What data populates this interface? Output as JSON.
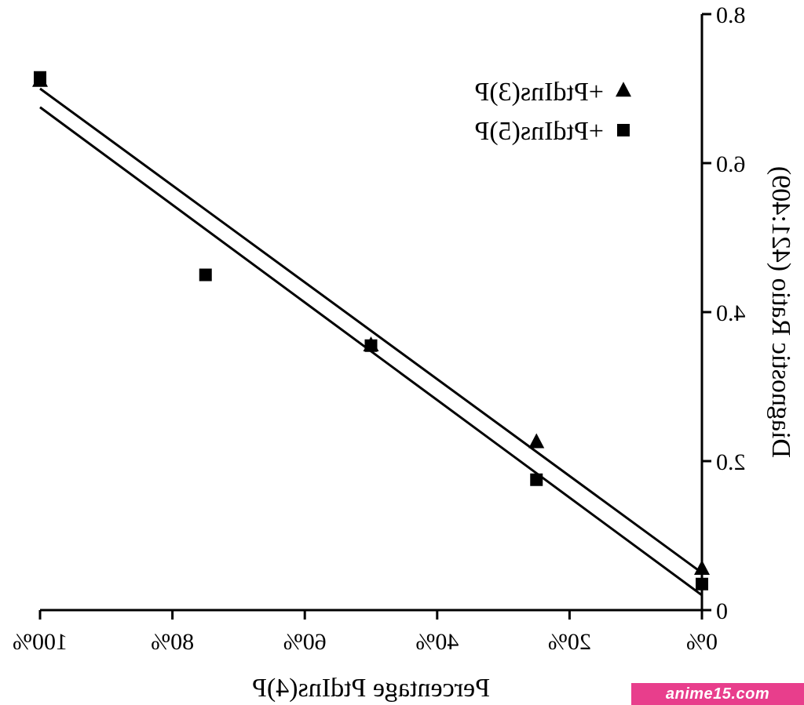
{
  "chart_data": {
    "type": "scatter",
    "mirrored": true,
    "xlabel": "Percentage PtdIns(4)P",
    "ylabel": "Diagnostic Ratio (421:409)",
    "xlim": [
      0,
      100
    ],
    "ylim": [
      0,
      8
    ],
    "x_ticks": [
      {
        "value": 0,
        "label": "0%"
      },
      {
        "value": 20,
        "label": "20%"
      },
      {
        "value": 40,
        "label": "40%"
      },
      {
        "value": 60,
        "label": "60%"
      },
      {
        "value": 80,
        "label": "80%"
      },
      {
        "value": 100,
        "label": "100%"
      }
    ],
    "y_ticks": [
      {
        "value": 0,
        "label": "0"
      },
      {
        "value": 2,
        "label": "2.0"
      },
      {
        "value": 4,
        "label": "4.0"
      },
      {
        "value": 6,
        "label": "6.0"
      },
      {
        "value": 8,
        "label": "8.0"
      }
    ],
    "legend_position": "top-right",
    "series": [
      {
        "name": "+PtdIns(3)P",
        "marker": "triangle",
        "color": "#000000",
        "points": [
          {
            "x": 0,
            "y": 0.55
          },
          {
            "x": 25,
            "y": 2.25
          },
          {
            "x": 50,
            "y": 3.55
          },
          {
            "x": 100,
            "y": 7.1
          }
        ],
        "fit": {
          "x0": 0,
          "y0": 0.5,
          "x1": 100,
          "y1": 7.0
        }
      },
      {
        "name": "+PtdIns(5)P",
        "marker": "square",
        "color": "#000000",
        "points": [
          {
            "x": 0,
            "y": 0.35
          },
          {
            "x": 25,
            "y": 1.75
          },
          {
            "x": 50,
            "y": 3.55
          },
          {
            "x": 75,
            "y": 4.5
          },
          {
            "x": 100,
            "y": 7.15
          }
        ],
        "fit": {
          "x0": 0,
          "y0": 0.2,
          "x1": 100,
          "y1": 6.75
        }
      }
    ]
  },
  "watermark": {
    "text": "anime15.com"
  }
}
